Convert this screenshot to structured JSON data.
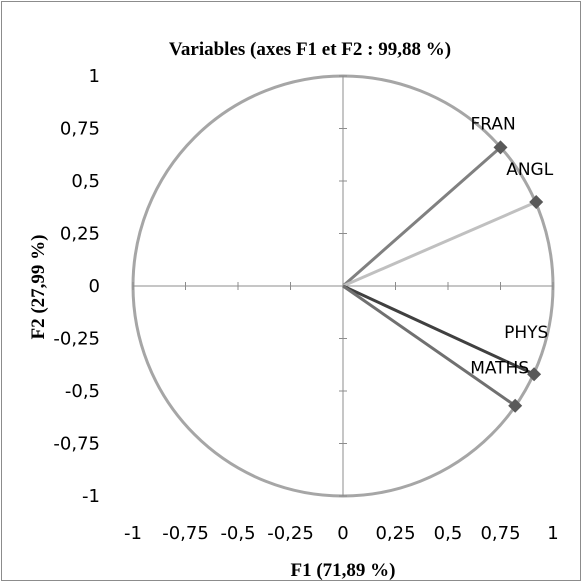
{
  "chart_data": {
    "type": "scatter",
    "title": "Variables (axes F1 et F2 : 99,88 %)",
    "xlabel": "F1 (71,89 %)",
    "ylabel": "F2 (27,99 %)",
    "xlim": [
      -1,
      1
    ],
    "ylim": [
      -1,
      1
    ],
    "x_ticks": [
      -1,
      -0.75,
      -0.5,
      -0.25,
      0,
      0.25,
      0.5,
      0.75,
      1
    ],
    "y_ticks": [
      -1,
      -0.75,
      -0.5,
      -0.25,
      0,
      0.25,
      0.5,
      0.75,
      1
    ],
    "x_tick_labels": [
      "-1",
      "-0,75",
      "-0,5",
      "-0,25",
      "0",
      "0,25",
      "0,5",
      "0,75",
      "1"
    ],
    "y_tick_labels": [
      "-1",
      "-0,75",
      "-0,5",
      "-0,25",
      "0",
      "0,25",
      "0,5",
      "0,75",
      "1"
    ],
    "unit_circle": true,
    "grid": false,
    "points": [
      {
        "label": "FRAN",
        "x": 0.75,
        "y": 0.66,
        "color": "#808080"
      },
      {
        "label": "ANGL",
        "x": 0.92,
        "y": 0.4,
        "color": "#c0c0c0"
      },
      {
        "label": "PHYS",
        "x": 0.91,
        "y": -0.42,
        "color": "#404040"
      },
      {
        "label": "MATHS",
        "x": 0.82,
        "y": -0.57,
        "color": "#707070"
      }
    ],
    "marker_color": "#595959",
    "circle_color": "#a6a6a6",
    "axis_color": "#8c8c8c"
  }
}
